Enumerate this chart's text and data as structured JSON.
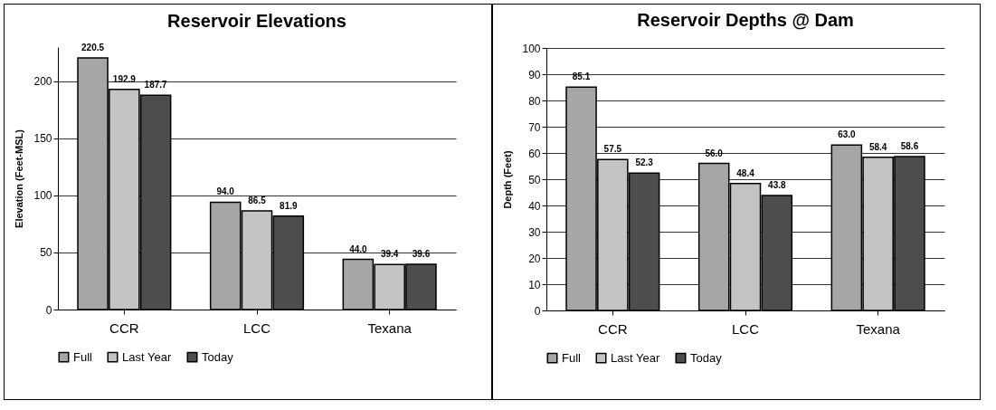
{
  "chart_data": [
    {
      "type": "bar",
      "title": "Reservoir Elevations",
      "ylabel": "Elevation (Feet-MSL)",
      "categories": [
        "CCR",
        "LCC",
        "Texana"
      ],
      "series": [
        {
          "name": "Full",
          "color": "#a6a6a6",
          "values": [
            220.5,
            94.0,
            44.0
          ],
          "value_labels": [
            "220.5",
            "94.0",
            "44.0"
          ]
        },
        {
          "name": "Last Year",
          "color": "#c4c4c4",
          "values": [
            192.9,
            86.5,
            39.4
          ],
          "value_labels": [
            "192.9",
            "86.5",
            "39.4"
          ]
        },
        {
          "name": "Today",
          "color": "#4d4d4d",
          "values": [
            187.7,
            81.9,
            39.6
          ],
          "value_labels": [
            "187.7",
            "81.9",
            "39.6"
          ]
        }
      ],
      "ylim": [
        0,
        230
      ],
      "yticks": [
        0,
        50,
        100,
        150,
        200
      ],
      "grid": "y",
      "legend": "bottom"
    },
    {
      "type": "bar",
      "title": "Reservoir Depths @ Dam",
      "ylabel": "Depth (Feet)",
      "categories": [
        "CCR",
        "LCC",
        "Texana"
      ],
      "series": [
        {
          "name": "Full",
          "color": "#a6a6a6",
          "values": [
            85.1,
            56.0,
            63.0
          ],
          "value_labels": [
            "85.1",
            "56.0",
            "63.0"
          ]
        },
        {
          "name": "Last Year",
          "color": "#c4c4c4",
          "values": [
            57.5,
            48.4,
            58.4
          ],
          "value_labels": [
            "57.5",
            "48.4",
            "58.4"
          ]
        },
        {
          "name": "Today",
          "color": "#4d4d4d",
          "values": [
            52.3,
            43.8,
            58.6
          ],
          "value_labels": [
            "52.3",
            "43.8",
            "58.6"
          ]
        }
      ],
      "ylim": [
        0,
        100
      ],
      "yticks": [
        0,
        10,
        20,
        30,
        40,
        50,
        60,
        70,
        80,
        90,
        100
      ],
      "grid": "y",
      "legend": "bottom"
    }
  ]
}
